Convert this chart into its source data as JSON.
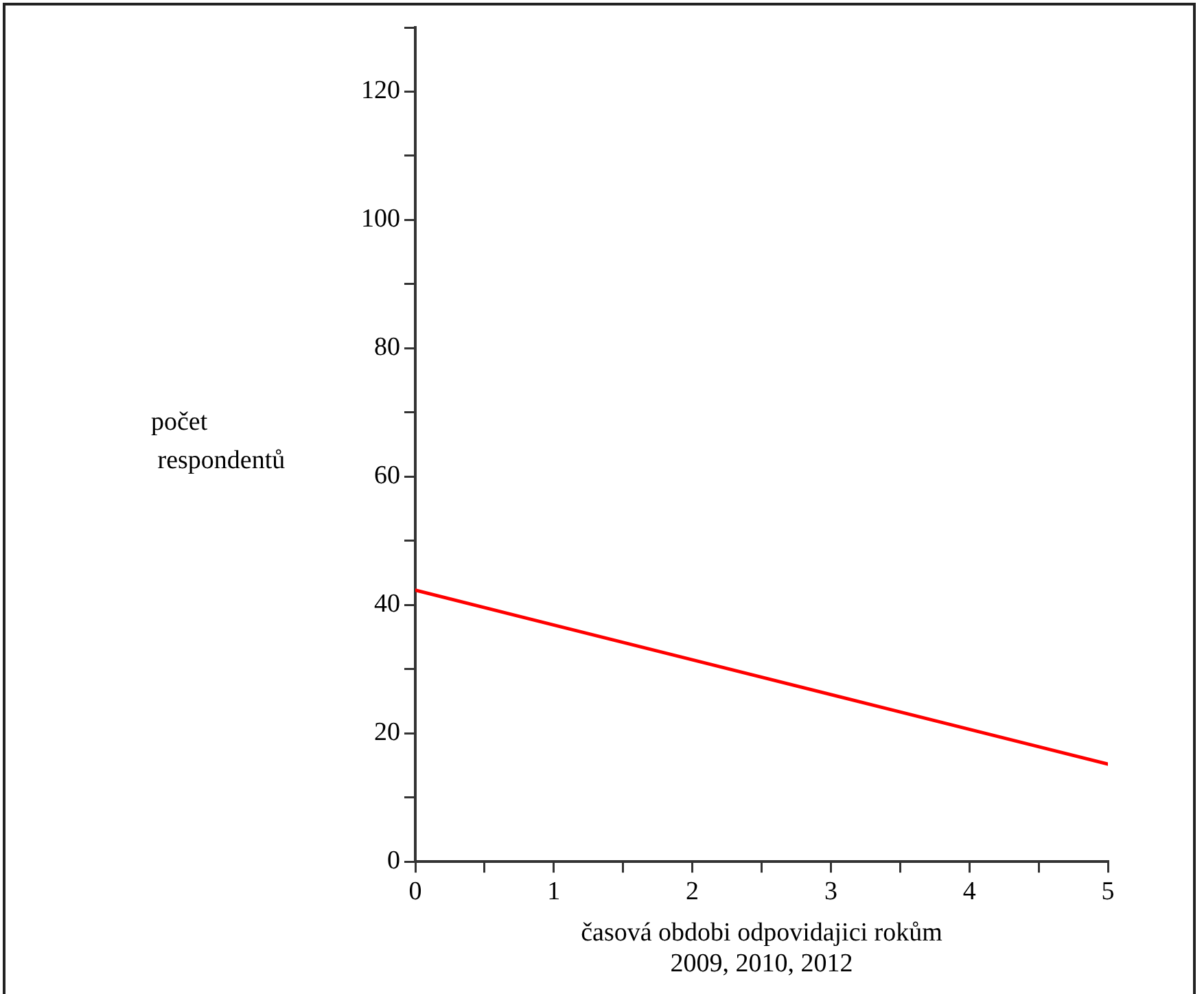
{
  "chart_data": {
    "type": "line",
    "xlabel": "časová obdobi odpovidajici rokům\n2009, 2010, 2012",
    "ylabel": "počet\n respondentů",
    "x": [
      0,
      5
    ],
    "series": [
      {
        "color": "#ff0000",
        "values": [
          42.3,
          15.2
        ]
      }
    ],
    "xlim": [
      0,
      5
    ],
    "xticks": [
      0,
      {
        "value": 0.5,
        "label": null
      },
      1,
      {
        "value": 1.5,
        "label": null
      },
      2,
      {
        "value": 2.5,
        "label": null
      },
      3,
      {
        "value": 3.5,
        "label": null
      },
      4,
      {
        "value": 4.5,
        "label": null
      },
      5
    ],
    "ylim": [
      0,
      130
    ],
    "yticks": [
      0,
      {
        "value": 10,
        "label": null
      },
      20,
      {
        "value": 30,
        "label": null
      },
      40,
      {
        "value": 50,
        "label": null
      },
      60,
      {
        "value": 70,
        "label": null
      },
      80,
      {
        "value": 90,
        "label": null
      },
      100,
      {
        "value": 110,
        "label": null
      },
      120,
      {
        "value": 130,
        "label": null
      }
    ],
    "grid": false,
    "legend": false,
    "marker": "none",
    "line_style": "solid"
  }
}
